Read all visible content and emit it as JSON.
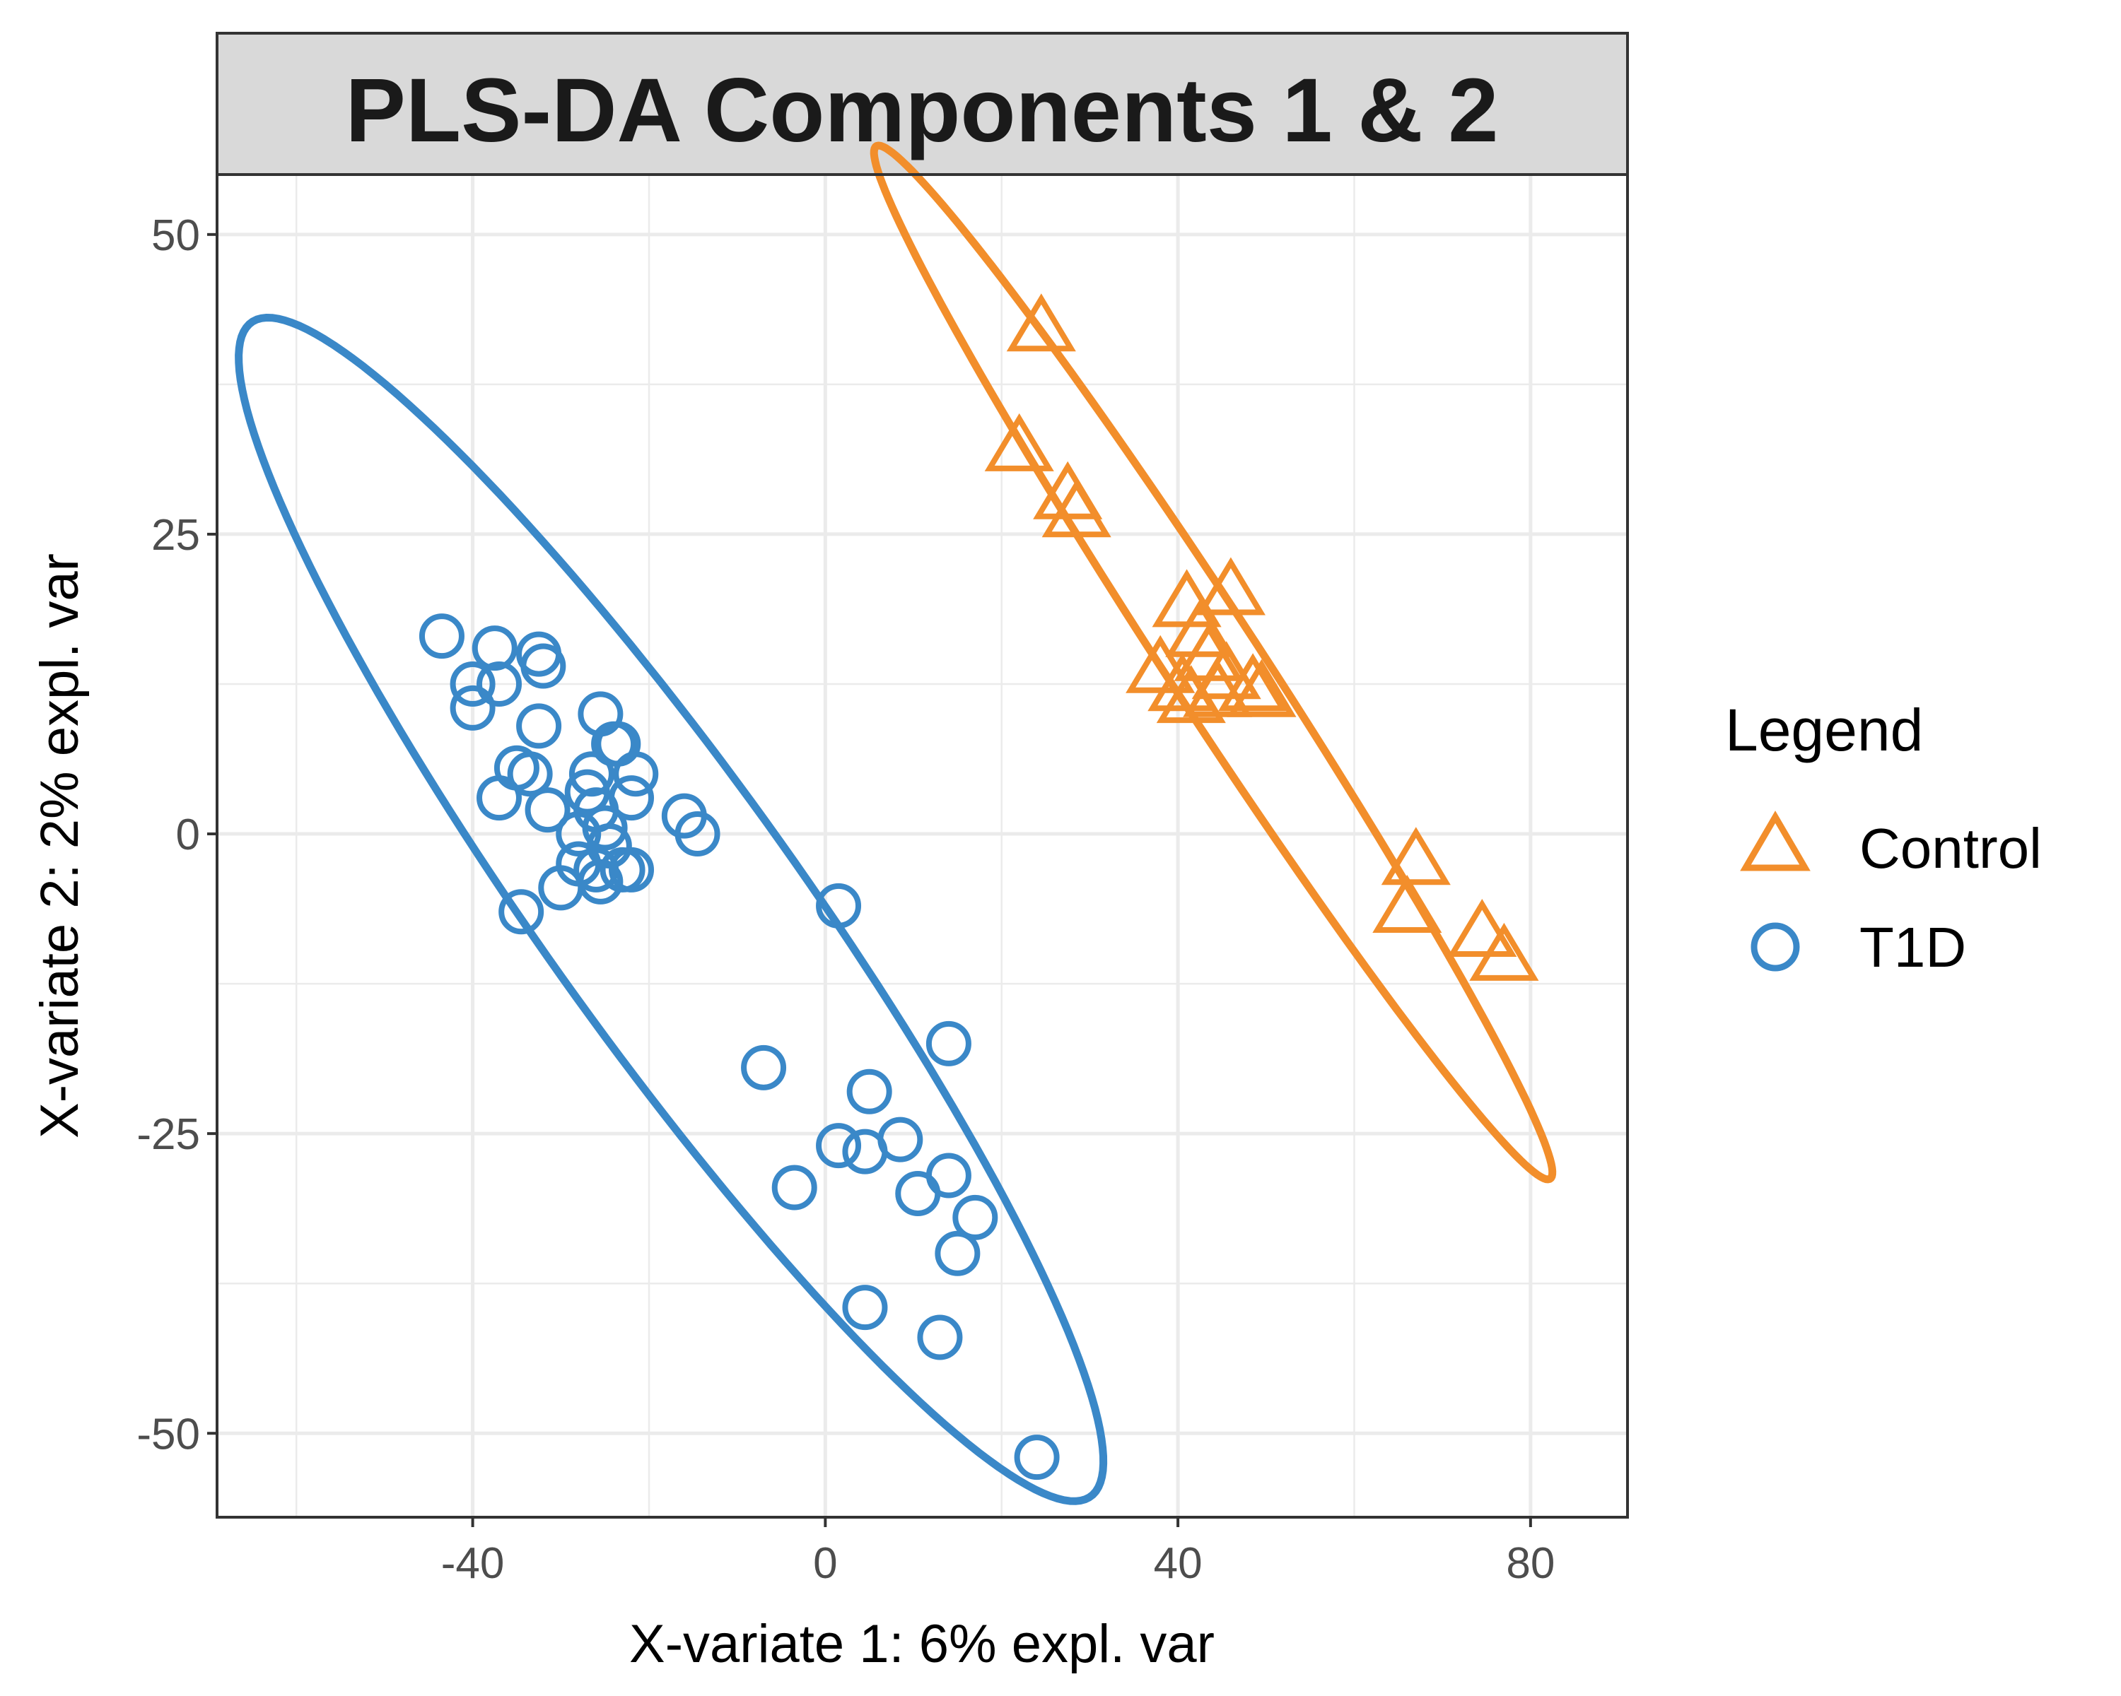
{
  "chart_data": {
    "type": "scatter",
    "title": "PLS-DA Components 1 & 2",
    "xlabel": "X-variate 1: 6% expl. var",
    "ylabel": "X-variate 2: 2% expl. var",
    "xlim": [
      -69,
      91
    ],
    "ylim": [
      -57,
      55
    ],
    "xticks": [
      -40,
      0,
      40,
      80
    ],
    "yticks": [
      50,
      25,
      0,
      -25,
      -50
    ],
    "xtick_labels": [
      "-40",
      "0",
      "40",
      "80"
    ],
    "ytick_labels": [
      "50",
      "25",
      "0",
      "-25",
      "-50"
    ],
    "grid": true,
    "legend": {
      "title": "Legend",
      "position": "right"
    },
    "series": [
      {
        "name": "Control",
        "marker": "triangle",
        "color": "#F28E2B",
        "points": [
          [
            24.5,
            42.5
          ],
          [
            22,
            32.5
          ],
          [
            27.5,
            28.5
          ],
          [
            28.5,
            27
          ],
          [
            41,
            19.5
          ],
          [
            46,
            20.5
          ],
          [
            42.5,
            17
          ],
          [
            43.5,
            15
          ],
          [
            38,
            14
          ],
          [
            40.5,
            12.5
          ],
          [
            41.5,
            11.5
          ],
          [
            44.5,
            12
          ],
          [
            45.5,
            13.5
          ],
          [
            48.5,
            12.5
          ],
          [
            49.5,
            12
          ],
          [
            67,
            -2
          ],
          [
            66,
            -6
          ],
          [
            74.5,
            -8
          ],
          [
            77,
            -10
          ]
        ],
        "ellipse": {
          "center": [
            44,
            14.3
          ],
          "semi_axis_1": 57.6,
          "semi_axis_2": 4.7,
          "angle_deg": 48.3
        }
      },
      {
        "name": "T1D",
        "marker": "circle",
        "color": "#3A88C8",
        "points": [
          [
            -43.5,
            16.5
          ],
          [
            -37.5,
            15.5
          ],
          [
            -32.5,
            15
          ],
          [
            -32,
            14
          ],
          [
            -40,
            12.5
          ],
          [
            -37,
            12.5
          ],
          [
            -40,
            10.5
          ],
          [
            -32.5,
            9
          ],
          [
            -25.5,
            10
          ],
          [
            -24,
            7.5
          ],
          [
            -23.5,
            7.5
          ],
          [
            -21.5,
            5
          ],
          [
            -26.5,
            5
          ],
          [
            -33.5,
            5
          ],
          [
            -35,
            5.5
          ],
          [
            -37,
            3
          ],
          [
            -27,
            3.5
          ],
          [
            -22,
            3
          ],
          [
            -26,
            2
          ],
          [
            -31.5,
            2
          ],
          [
            -16,
            1.5
          ],
          [
            -14.5,
            0
          ],
          [
            -25,
            0.5
          ],
          [
            -28,
            0
          ],
          [
            -24.5,
            -1
          ],
          [
            -28,
            -2.5
          ],
          [
            -26,
            -3
          ],
          [
            -23,
            -3
          ],
          [
            -22,
            -3
          ],
          [
            -30,
            -4.5
          ],
          [
            -25.5,
            -4
          ],
          [
            -34.5,
            -6.5
          ],
          [
            1.5,
            -6
          ],
          [
            14,
            -17.5
          ],
          [
            -7,
            -19.5
          ],
          [
            5,
            -21.5
          ],
          [
            8.5,
            -25.5
          ],
          [
            1.5,
            -26
          ],
          [
            4.5,
            -26.5
          ],
          [
            14,
            -28.5
          ],
          [
            -3.5,
            -29.5
          ],
          [
            10.5,
            -30
          ],
          [
            17,
            -32
          ],
          [
            15,
            -35
          ],
          [
            4.5,
            -39.5
          ],
          [
            13,
            -42
          ],
          [
            24,
            -52
          ]
        ],
        "ellipse": {
          "center": [
            -17.5,
            -6.3
          ],
          "semi_axis_1": 68.4,
          "semi_axis_2": 12.8,
          "angle_deg": 45.2
        }
      }
    ]
  }
}
